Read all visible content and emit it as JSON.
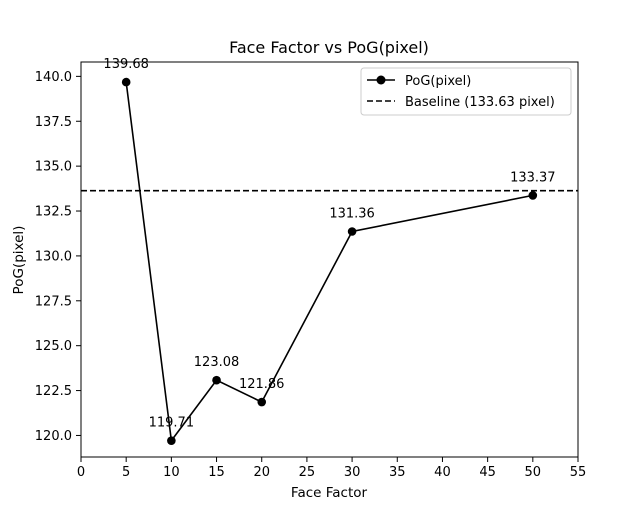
{
  "chart_data": {
    "type": "line",
    "title": "Face Factor vs PoG(pixel)",
    "xlabel": "Face Factor",
    "ylabel": "PoG(pixel)",
    "xlim": [
      0,
      55
    ],
    "ylim": [
      118.8,
      140.8
    ],
    "x_ticks": [
      0,
      5,
      10,
      15,
      20,
      25,
      30,
      35,
      40,
      45,
      50,
      55
    ],
    "y_ticks": [
      120.0,
      122.5,
      125.0,
      127.5,
      130.0,
      132.5,
      135.0,
      137.5,
      140.0
    ],
    "grid": false,
    "legend_position": "top-right",
    "series": [
      {
        "name": "PoG(pixel)",
        "color": "#000000",
        "marker": "circle",
        "x": [
          5,
          10,
          15,
          20,
          30,
          50
        ],
        "y": [
          139.68,
          119.71,
          123.08,
          121.86,
          131.36,
          133.37
        ],
        "labels": [
          "139.68",
          "119.71",
          "123.08",
          "121.86",
          "131.36",
          "133.37"
        ]
      }
    ],
    "reference_lines": [
      {
        "name": "Baseline (133.63 pixel)",
        "y": 133.63,
        "style": "dashed",
        "color": "#000000"
      }
    ]
  }
}
